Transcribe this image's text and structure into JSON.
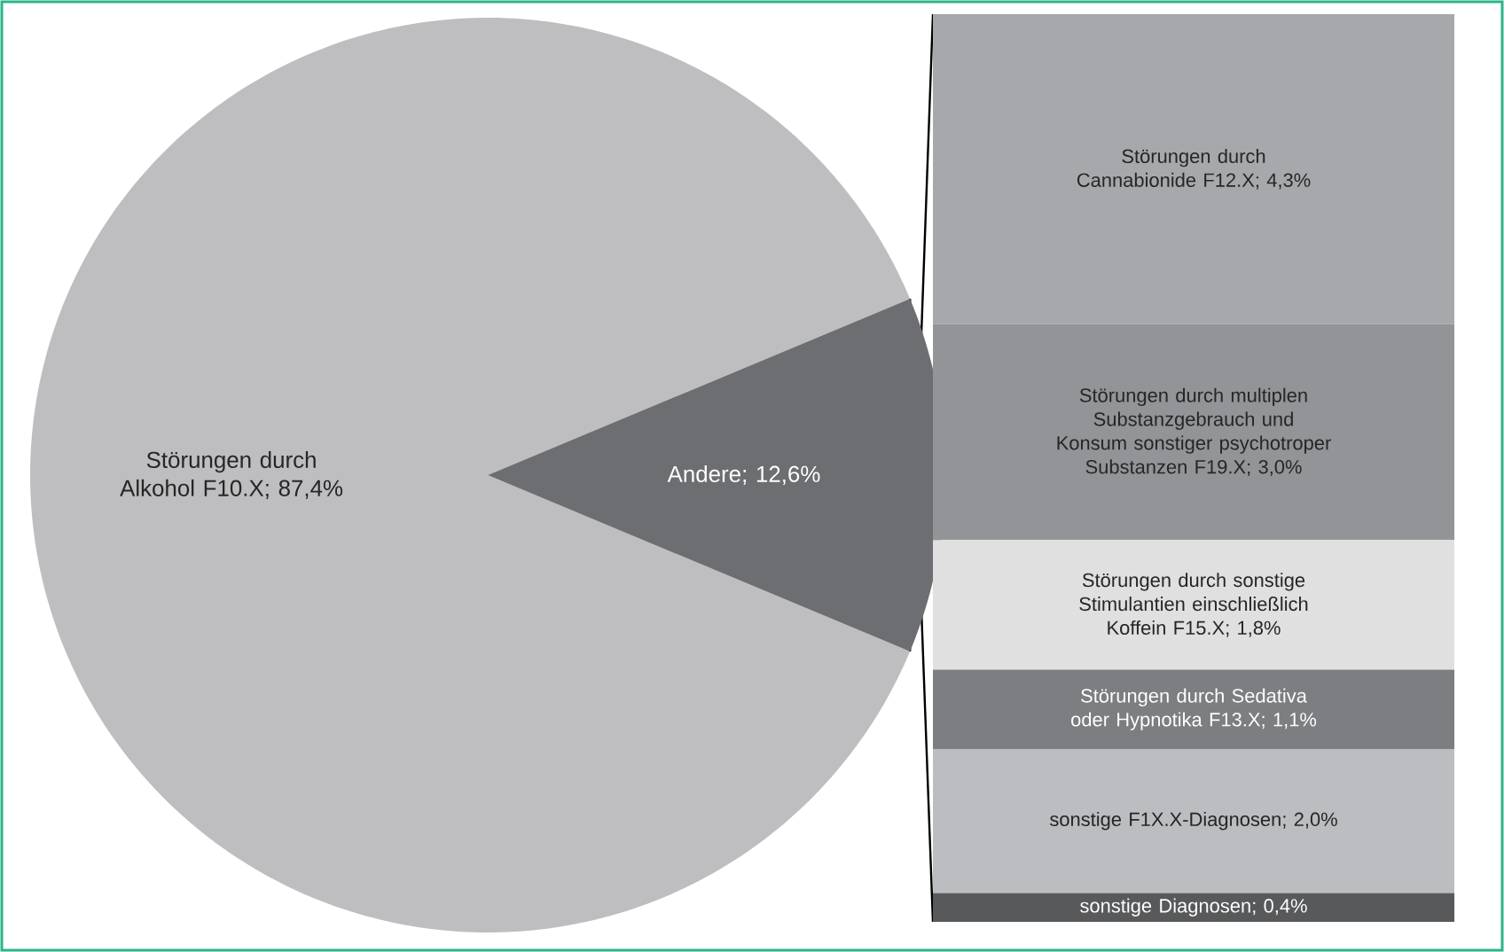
{
  "chart_data": [
    {
      "type": "pie",
      "categories": [
        "Störungen durch Alkohol F10.X",
        "Andere"
      ],
      "values": [
        87.4,
        12.6
      ],
      "colors": [
        "#bebec0",
        "#6d6e71"
      ],
      "value_labels": [
        "; 87,4%",
        "; 12,6%"
      ]
    },
    {
      "type": "bar",
      "stacked": true,
      "categories": [
        null
      ],
      "series": [
        {
          "name": "sonstige Diagnosen",
          "color": "#58595b",
          "values": [
            0.4
          ],
          "value_labels": [
            "; 0,4%"
          ]
        },
        {
          "name": "sonstige F1X.X-Diagnosen",
          "color": "#bcbdc0",
          "values": [
            2.0
          ],
          "value_labels": [
            "; 2,0%"
          ]
        },
        {
          "name": "Störungen durch Sedativa oder Hypnotika F13.X",
          "color": "#7d7e81",
          "values": [
            1.1
          ],
          "value_labels": [
            "; 1,1%"
          ]
        },
        {
          "name": "Störungen durch sonstige Stimulantien einschließlich Koffein F15.X",
          "color": "#e0e0e1",
          "values": [
            1.8
          ],
          "value_labels": [
            "; 1,8%"
          ]
        },
        {
          "name": "Störungen durch multiplen Substanzgebrauch und Konsum sonstiger psychotroper Substanzen F19.X",
          "color": "#939497",
          "values": [
            3.0
          ],
          "value_labels": [
            "; 3,0%"
          ]
        },
        {
          "name": "Störungen durch Cannabionide F12.X",
          "color": "#a7a8ab",
          "values": [
            4.3
          ],
          "value_labels": [
            "; 4,3%"
          ]
        }
      ]
    }
  ]
}
